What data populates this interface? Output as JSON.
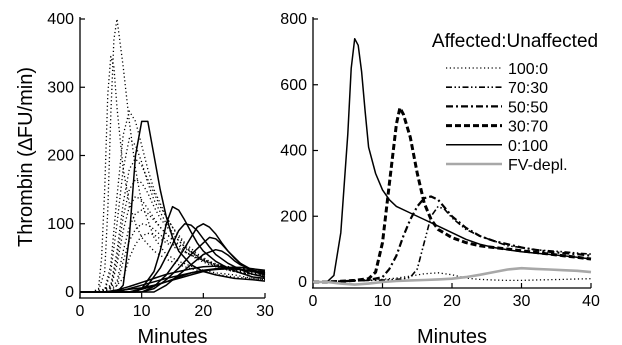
{
  "figure": {
    "ylabel": "Thrombin (∆FU/min)"
  },
  "chart_data": [
    {
      "type": "line",
      "panel": "left",
      "xlabel": "Minutes",
      "ylabel": "Thrombin (∆FU/min)",
      "xlim": [
        0,
        30
      ],
      "ylim": [
        0,
        400
      ],
      "xticks": [
        "0",
        "10",
        "20",
        "30"
      ],
      "yticks": [
        "0",
        "100",
        "200",
        "300",
        "400"
      ],
      "series": [
        {
          "style": "dotted",
          "x": [
            0,
            2,
            3,
            4,
            4.5,
            5,
            5.5,
            6,
            7,
            8,
            9,
            10,
            12,
            14,
            16,
            18,
            20,
            22,
            25,
            28,
            30
          ],
          "y": [
            0,
            0,
            2,
            30,
            120,
            260,
            370,
            400,
            330,
            250,
            180,
            130,
            80,
            55,
            45,
            38,
            32,
            28,
            25,
            20,
            18
          ]
        },
        {
          "style": "dotted",
          "x": [
            0,
            2,
            3,
            3.5,
            4,
            4.5,
            5,
            5.5,
            6,
            7,
            8,
            9,
            10,
            12,
            14,
            16,
            18,
            20,
            22,
            25,
            28,
            30
          ],
          "y": [
            0,
            0,
            5,
            50,
            150,
            290,
            345,
            330,
            270,
            180,
            130,
            100,
            80,
            60,
            48,
            40,
            34,
            30,
            26,
            22,
            20,
            18
          ]
        },
        {
          "style": "dotted",
          "x": [
            0,
            2,
            4,
            5,
            6,
            7,
            8,
            9,
            10,
            11,
            12,
            14,
            16,
            18,
            20,
            22,
            25,
            28,
            30
          ],
          "y": [
            0,
            0,
            3,
            40,
            140,
            230,
            265,
            250,
            215,
            180,
            150,
            110,
            80,
            60,
            48,
            40,
            32,
            28,
            24
          ]
        },
        {
          "style": "dotted",
          "x": [
            0,
            2,
            4,
            5,
            6,
            7,
            8,
            9,
            10,
            11,
            12,
            14,
            16,
            18,
            20,
            22,
            25,
            28,
            30
          ],
          "y": [
            0,
            0,
            2,
            30,
            100,
            180,
            225,
            215,
            190,
            160,
            135,
            100,
            75,
            58,
            46,
            38,
            30,
            26,
            22
          ]
        },
        {
          "style": "dotted",
          "x": [
            0,
            3,
            5,
            6,
            7,
            8,
            9,
            10,
            11,
            12,
            13,
            15,
            17,
            19,
            21,
            23,
            26,
            30
          ],
          "y": [
            0,
            0,
            10,
            60,
            130,
            180,
            195,
            185,
            165,
            145,
            125,
            95,
            72,
            56,
            45,
            38,
            30,
            25
          ]
        },
        {
          "style": "dotted",
          "x": [
            0,
            3,
            5,
            6,
            7,
            8,
            9,
            10,
            11,
            12,
            13,
            15,
            17,
            19,
            21,
            23,
            26,
            30
          ],
          "y": [
            0,
            0,
            8,
            50,
            110,
            150,
            165,
            160,
            145,
            125,
            108,
            85,
            66,
            52,
            42,
            35,
            28,
            24
          ]
        },
        {
          "style": "dotted",
          "x": [
            0,
            3,
            5,
            6,
            7,
            8,
            9,
            10,
            11,
            12,
            13,
            15,
            17,
            19,
            21,
            23,
            26,
            30
          ],
          "y": [
            0,
            0,
            6,
            40,
            90,
            125,
            140,
            135,
            122,
            108,
            95,
            76,
            60,
            48,
            40,
            34,
            28,
            24
          ]
        },
        {
          "style": "dotted",
          "x": [
            0,
            4,
            6,
            7,
            8,
            9,
            10,
            11,
            12,
            13,
            14,
            16,
            18,
            20,
            22,
            25,
            28,
            30
          ],
          "y": [
            0,
            0,
            15,
            60,
            95,
            115,
            120,
            115,
            105,
            95,
            85,
            70,
            58,
            48,
            40,
            34,
            30,
            28
          ]
        },
        {
          "style": "dotted",
          "x": [
            0,
            4,
            6,
            7,
            8,
            9,
            10,
            11,
            12,
            13,
            14,
            16,
            18,
            20,
            22,
            25,
            28,
            30
          ],
          "y": [
            0,
            0,
            10,
            45,
            75,
            92,
            100,
            98,
            92,
            84,
            76,
            64,
            54,
            46,
            40,
            35,
            32,
            30
          ]
        },
        {
          "style": "dotted",
          "x": [
            0,
            5,
            7,
            8,
            9,
            10,
            11,
            12,
            13,
            14,
            16,
            18,
            20,
            22,
            25,
            28,
            30
          ],
          "y": [
            0,
            0,
            20,
            50,
            70,
            82,
            86,
            84,
            78,
            72,
            62,
            54,
            46,
            40,
            36,
            32,
            30
          ]
        },
        {
          "style": "solid",
          "x": [
            0,
            6,
            7,
            8,
            9,
            10,
            11,
            12,
            13,
            14,
            15,
            16,
            18,
            20,
            22,
            25,
            28,
            30
          ],
          "y": [
            0,
            0,
            10,
            80,
            200,
            250,
            250,
            200,
            150,
            110,
            80,
            60,
            40,
            30,
            25,
            20,
            18,
            16
          ]
        },
        {
          "style": "solid",
          "x": [
            0,
            8,
            10,
            12,
            13,
            14,
            15,
            16,
            17,
            18,
            19,
            20,
            22,
            24,
            26,
            28,
            30
          ],
          "y": [
            0,
            0,
            5,
            30,
            60,
            100,
            125,
            120,
            105,
            88,
            72,
            60,
            45,
            35,
            28,
            22,
            20
          ]
        },
        {
          "style": "solid",
          "x": [
            0,
            9,
            11,
            13,
            15,
            16,
            17,
            18,
            19,
            20,
            21,
            22,
            24,
            26,
            28,
            30
          ],
          "y": [
            0,
            0,
            10,
            35,
            70,
            90,
            100,
            98,
            90,
            78,
            66,
            55,
            42,
            33,
            26,
            22
          ]
        },
        {
          "style": "solid",
          "x": [
            0,
            10,
            12,
            14,
            16,
            18,
            19,
            20,
            21,
            22,
            23,
            24,
            26,
            28,
            30
          ],
          "y": [
            0,
            0,
            8,
            25,
            50,
            80,
            95,
            100,
            95,
            85,
            72,
            60,
            42,
            32,
            26
          ]
        },
        {
          "style": "solid",
          "x": [
            0,
            10,
            12,
            14,
            16,
            18,
            20,
            21,
            22,
            23,
            24,
            25,
            26,
            28,
            30
          ],
          "y": [
            0,
            0,
            5,
            18,
            35,
            55,
            72,
            80,
            78,
            70,
            60,
            50,
            42,
            30,
            25
          ]
        },
        {
          "style": "solid",
          "x": [
            0,
            12,
            14,
            16,
            18,
            20,
            22,
            23,
            24,
            25,
            26,
            28,
            30
          ],
          "y": [
            0,
            0,
            10,
            25,
            40,
            55,
            62,
            60,
            54,
            46,
            40,
            32,
            28
          ]
        },
        {
          "style": "solid",
          "x": [
            0,
            2,
            4,
            6,
            8,
            10,
            12,
            14,
            16,
            18,
            20,
            22,
            24,
            26,
            28,
            30
          ],
          "y": [
            0,
            0,
            0,
            2,
            4,
            6,
            10,
            15,
            22,
            28,
            32,
            34,
            35,
            33,
            30,
            28
          ]
        },
        {
          "style": "solid",
          "x": [
            0,
            4,
            6,
            8,
            10,
            12,
            14,
            16,
            18,
            20,
            22,
            24,
            26,
            28,
            30
          ],
          "y": [
            0,
            0,
            3,
            8,
            14,
            20,
            26,
            30,
            34,
            37,
            38,
            36,
            33,
            30,
            28
          ]
        },
        {
          "style": "solid",
          "x": [
            0,
            6,
            8,
            10,
            12,
            14,
            16,
            18,
            20,
            22,
            24,
            26,
            28,
            30
          ],
          "y": [
            0,
            0,
            5,
            10,
            15,
            20,
            24,
            28,
            31,
            33,
            34,
            33,
            31,
            30
          ]
        },
        {
          "style": "solid",
          "x": [
            0,
            8,
            10,
            12,
            14,
            16,
            18,
            20,
            22,
            24,
            26,
            28,
            30
          ],
          "y": [
            0,
            0,
            4,
            9,
            15,
            20,
            25,
            30,
            34,
            36,
            36,
            34,
            32
          ]
        }
      ]
    },
    {
      "type": "line",
      "panel": "right",
      "xlabel": "Minutes",
      "xlim": [
        0,
        40
      ],
      "ylim": [
        0,
        800
      ],
      "xticks": [
        "0",
        "10",
        "20",
        "30",
        "40"
      ],
      "yticks": [
        "0",
        "200",
        "400",
        "600",
        "800"
      ],
      "legend": {
        "title": "Affected:Unaffected",
        "position": "top-right"
      },
      "series": [
        {
          "name": "100:0",
          "style": "dotted",
          "color": "#000000",
          "x": [
            0,
            2,
            4,
            6,
            8,
            10,
            12,
            14,
            16,
            18,
            20,
            22,
            24,
            26,
            28,
            30,
            32,
            34,
            36,
            38,
            40
          ],
          "y": [
            0,
            0,
            3,
            5,
            6,
            8,
            12,
            18,
            25,
            28,
            22,
            12,
            8,
            6,
            5,
            5,
            6,
            7,
            8,
            9,
            10
          ]
        },
        {
          "name": "70:30",
          "style": "dash-dot-dot",
          "color": "#000000",
          "x": [
            0,
            2,
            4,
            6,
            8,
            10,
            12,
            13,
            14,
            15,
            16,
            17,
            18,
            19,
            20,
            22,
            24,
            26,
            28,
            30,
            32,
            34,
            36,
            38,
            40
          ],
          "y": [
            0,
            0,
            2,
            4,
            5,
            6,
            8,
            10,
            14,
            40,
            120,
            200,
            230,
            220,
            195,
            160,
            140,
            125,
            110,
            105,
            98,
            95,
            92,
            88,
            85
          ]
        },
        {
          "name": "50:50",
          "style": "dash-dot",
          "color": "#000000",
          "x": [
            0,
            2,
            4,
            6,
            8,
            10,
            11,
            12,
            13,
            14,
            15,
            16,
            17,
            18,
            19,
            20,
            22,
            24,
            26,
            28,
            30,
            32,
            34,
            36,
            38,
            40
          ],
          "y": [
            0,
            0,
            2,
            4,
            6,
            15,
            40,
            80,
            140,
            190,
            230,
            255,
            260,
            250,
            225,
            200,
            165,
            140,
            125,
            115,
            105,
            98,
            92,
            88,
            85,
            80
          ]
        },
        {
          "name": "30:70",
          "style": "dashed",
          "color": "#000000",
          "x": [
            0,
            2,
            4,
            6,
            8,
            9,
            10,
            11,
            12,
            12.5,
            13,
            14,
            15,
            16,
            17,
            18,
            20,
            22,
            24,
            26,
            28,
            30,
            32,
            34,
            36,
            38,
            40
          ],
          "y": [
            0,
            0,
            2,
            5,
            10,
            30,
            120,
            300,
            480,
            530,
            510,
            440,
            330,
            240,
            190,
            160,
            135,
            120,
            110,
            105,
            100,
            95,
            90,
            85,
            80,
            75,
            70
          ]
        },
        {
          "name": "0:100",
          "style": "solid",
          "color": "#000000",
          "x": [
            0,
            2,
            3,
            4,
            5,
            5.5,
            6,
            6.5,
            7,
            7.5,
            8,
            9,
            10,
            11,
            12,
            14,
            16,
            18,
            20,
            22,
            24,
            26,
            28,
            30,
            32,
            34,
            36,
            38,
            40
          ],
          "y": [
            0,
            0,
            20,
            150,
            450,
            650,
            740,
            720,
            640,
            520,
            410,
            330,
            280,
            250,
            230,
            210,
            190,
            170,
            150,
            130,
            115,
            105,
            98,
            92,
            88,
            84,
            80,
            75,
            70
          ]
        },
        {
          "name": "FV-depl.",
          "style": "solid",
          "color": "#a8a8a8",
          "x": [
            0,
            2,
            4,
            6,
            8,
            10,
            12,
            14,
            16,
            18,
            20,
            22,
            24,
            26,
            28,
            30,
            32,
            34,
            36,
            38,
            40
          ],
          "y": [
            0,
            0,
            -5,
            -8,
            -5,
            0,
            3,
            5,
            6,
            8,
            10,
            15,
            22,
            30,
            38,
            42,
            40,
            38,
            36,
            34,
            30
          ]
        }
      ]
    }
  ]
}
